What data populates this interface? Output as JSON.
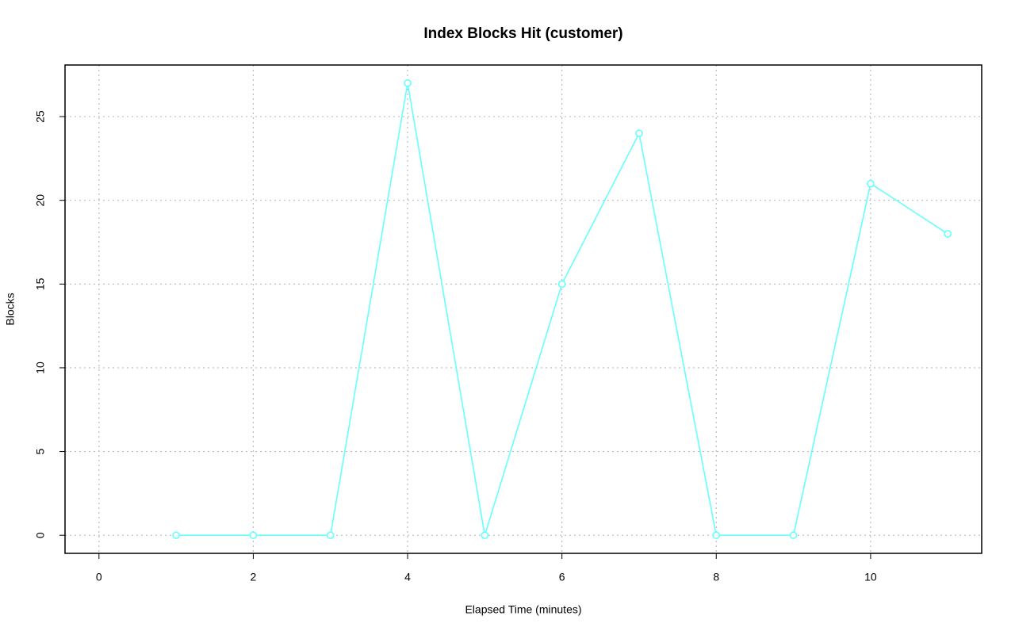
{
  "chart_data": {
    "type": "line",
    "title": "Index Blocks Hit (customer)",
    "xlabel": "Elapsed Time (minutes)",
    "ylabel": "Blocks",
    "x": [
      1,
      2,
      3,
      4,
      5,
      6,
      7,
      8,
      9,
      10,
      11
    ],
    "series": [
      {
        "name": "customer",
        "color": "#66ffff",
        "values": [
          0,
          0,
          0,
          27,
          0,
          15,
          24,
          0,
          0,
          21,
          18
        ]
      }
    ],
    "xlim": [
      -0.44,
      11.44
    ],
    "ylim": [
      -1.08,
      28.08
    ],
    "xticks": [
      0,
      2,
      4,
      6,
      8,
      10
    ],
    "yticks": [
      0,
      5,
      10,
      15,
      20,
      25
    ],
    "grid": true
  }
}
